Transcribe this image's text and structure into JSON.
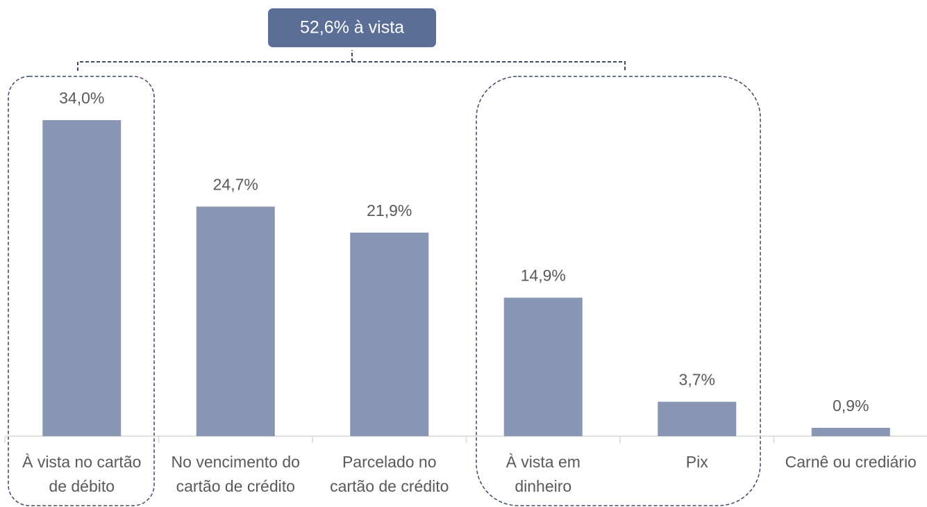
{
  "chart_data": {
    "type": "bar",
    "annotation": "52,6% à vista",
    "categories": [
      [
        "À vista no cartão",
        "de débito"
      ],
      [
        "No vencimento do",
        "cartão de crédito"
      ],
      [
        "Parcelado no",
        "cartão de crédito"
      ],
      [
        "À vista em",
        "dinheiro"
      ],
      [
        "Pix"
      ],
      [
        "Carnê ou crediário"
      ]
    ],
    "values": [
      34.0,
      24.7,
      21.9,
      14.9,
      3.7,
      0.9
    ],
    "value_labels": [
      "34,0%",
      "24,7%",
      "21,9%",
      "14,9%",
      "3,7%",
      "0,9%"
    ],
    "color": "#8896b3"
  }
}
